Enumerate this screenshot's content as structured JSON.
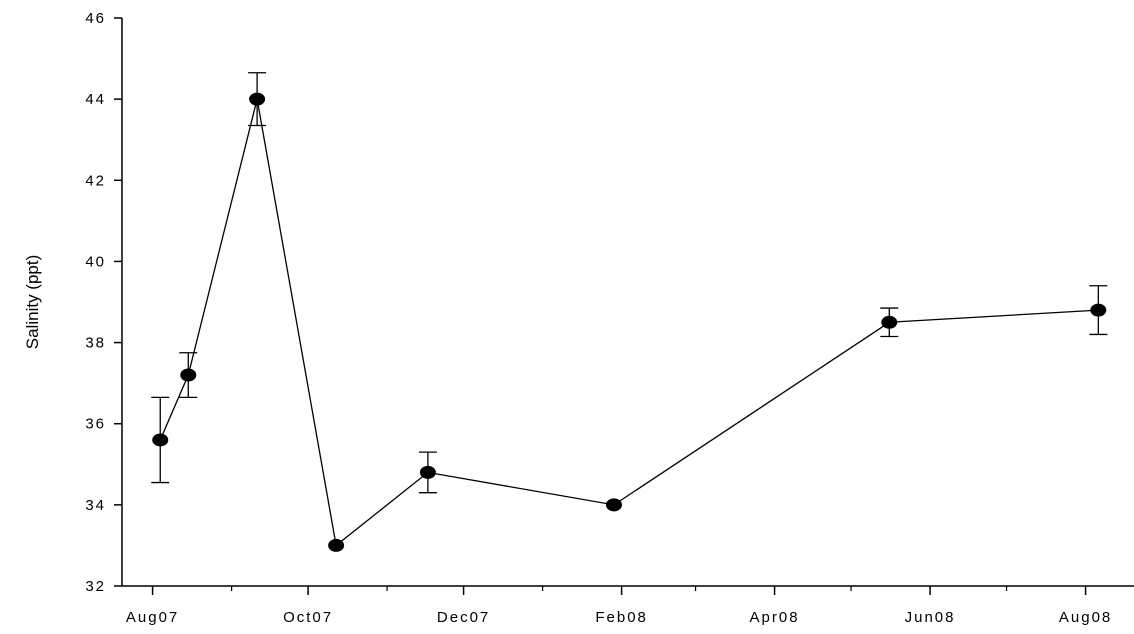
{
  "chart_data": {
    "type": "line",
    "ylabel": "Salinity (ppt)",
    "xlabel": "",
    "ylim": [
      32,
      46
    ],
    "y_ticks": [
      "32",
      "34",
      "36",
      "38",
      "40",
      "42",
      "44",
      "46"
    ],
    "x_tick_labels": [
      "Aug07",
      "Oct07",
      "Dec07",
      "Feb08",
      "Apr08",
      "Jun08",
      "Aug08"
    ],
    "x_tick_dates": [
      "2007-08-01",
      "2007-10-01",
      "2007-12-01",
      "2008-02-01",
      "2008-04-01",
      "2008-06-01",
      "2008-08-01"
    ],
    "x_minor_tick_dates": [
      "2007-09-01",
      "2007-11-01",
      "2008-01-01",
      "2008-03-01",
      "2008-05-01",
      "2008-07-01"
    ],
    "xlim": [
      "2007-07-20",
      "2008-08-20"
    ],
    "grid": false,
    "series": [
      {
        "x": [
          "2007-08-04",
          "2007-08-15",
          "2007-09-11",
          "2007-10-12",
          "2007-11-17",
          "2008-01-29",
          "2008-05-16",
          "2008-08-06"
        ],
        "y": [
          35.6,
          37.2,
          44.0,
          33.0,
          34.8,
          34.0,
          38.5,
          38.8
        ],
        "err": [
          1.05,
          0.55,
          0.65,
          0.0,
          0.5,
          0.0,
          0.35,
          0.6
        ]
      }
    ]
  }
}
